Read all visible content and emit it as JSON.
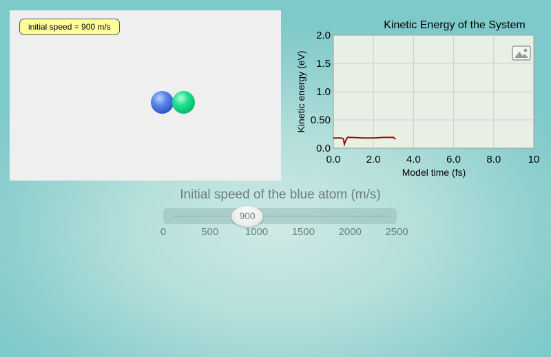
{
  "simulation": {
    "label": "initial speed = 900 m/s",
    "atoms": [
      {
        "name": "blue atom",
        "color": "#3c64d6"
      },
      {
        "name": "green atom",
        "color": "#0bd07c"
      }
    ]
  },
  "chart_data": {
    "type": "line",
    "title": "Kinetic Energy of the System",
    "xlabel": "Model time (fs)",
    "ylabel": "Kinetic energy (eV)",
    "xlim": [
      0,
      10
    ],
    "ylim": [
      0,
      2.0
    ],
    "x_ticks": [
      "0.0",
      "2.0",
      "4.0",
      "6.0",
      "8.0",
      "10"
    ],
    "y_ticks": [
      "0.0",
      "0.50",
      "1.0",
      "1.5",
      "2.0"
    ],
    "grid": true,
    "series": [
      {
        "color": "#9b0d0d",
        "x": [
          0.0,
          0.4,
          0.5,
          0.55,
          0.6,
          0.7,
          0.9,
          1.5,
          2.0,
          2.5,
          3.0,
          3.1
        ],
        "y": [
          0.18,
          0.18,
          0.17,
          0.07,
          0.12,
          0.19,
          0.19,
          0.18,
          0.18,
          0.19,
          0.19,
          0.16
        ]
      }
    ],
    "background": "#e8f0e6"
  },
  "slider": {
    "title": "Initial speed of the blue atom (m/s)",
    "value": 900,
    "value_label": "900",
    "min": 0,
    "max": 2500,
    "tick_labels": [
      "0",
      "500",
      "1000",
      "1500",
      "2000",
      "2500"
    ]
  },
  "icons": {
    "snapshot": "image-icon"
  }
}
